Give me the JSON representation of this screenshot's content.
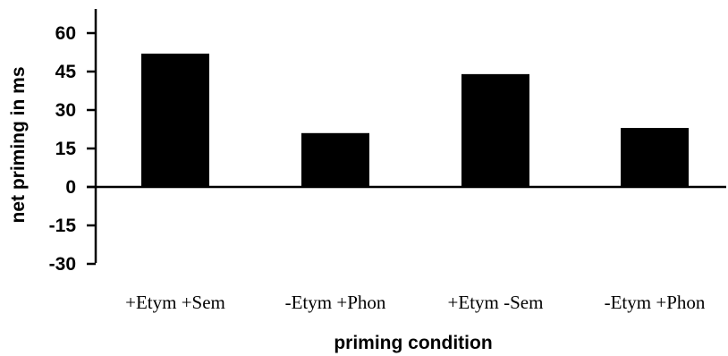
{
  "chart_data": {
    "type": "bar",
    "categories": [
      "+Etym +Sem",
      "-Etym +Phon",
      "+Etym -Sem",
      "-Etym +Phon"
    ],
    "values": [
      52,
      21,
      44,
      23
    ],
    "title": "",
    "xlabel": "priming condition",
    "ylabel": "net priming in ms",
    "ylim": [
      -30,
      60
    ],
    "yticks": [
      60,
      45,
      30,
      15,
      0,
      -15,
      -30
    ],
    "ytick_labels": [
      "60",
      "45",
      "30",
      "15",
      "0",
      "-15",
      "-30"
    ],
    "bar_color": "#000000",
    "grid": false,
    "legend": "none"
  }
}
